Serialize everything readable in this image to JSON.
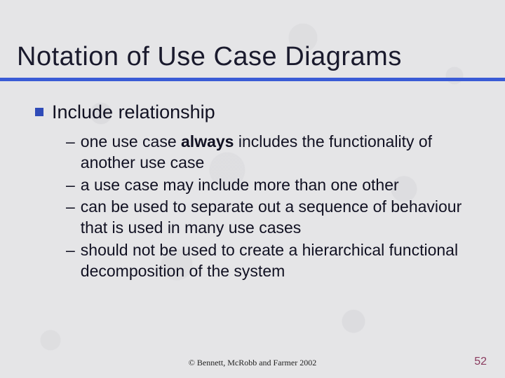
{
  "title": "Notation of Use Case Diagrams",
  "title_color": "#1a1a2d",
  "rule_color": "#3a5bd6",
  "bullet_color": "#2f4bb8",
  "bullet": {
    "text": "Include relationship"
  },
  "sub_bullets": [
    {
      "pre": "one use case ",
      "bold": "always",
      "post": " includes the functionality of another use case"
    },
    {
      "pre": "a use case may include more than one other",
      "bold": "",
      "post": ""
    },
    {
      "pre": "can be used to separate out a sequence of behaviour that is used in many use cases",
      "bold": "",
      "post": ""
    },
    {
      "pre": "should not be used to create a hierarchical functional decomposition of the system",
      "bold": "",
      "post": ""
    }
  ],
  "footer": "©  Bennett, McRobb and Farmer 2002",
  "page_number": "52",
  "page_number_color": "#8a3a5e"
}
